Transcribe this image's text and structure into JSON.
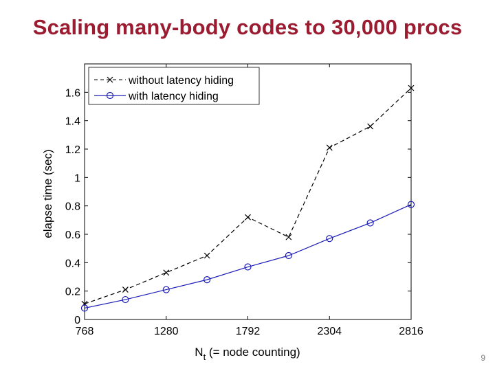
{
  "slide": {
    "title": "Scaling many-body codes to 30,000 procs",
    "page_number": "9"
  },
  "colors": {
    "title": "#9b1b30",
    "series_with": "#1c1cb8",
    "series_without": "#000000"
  },
  "chart_data": {
    "type": "line",
    "title": "",
    "xlabel_main": "N",
    "xlabel_sub": "t",
    "xlabel_rest": " (= node counting)",
    "ylabel": "elapse time (sec)",
    "xlim": [
      768,
      2816
    ],
    "ylim": [
      0,
      1.8
    ],
    "x_ticks": [
      768,
      1280,
      1792,
      2304,
      2816
    ],
    "x_tick_labels": [
      "768",
      "1280",
      "1792",
      "2304",
      "2816"
    ],
    "y_ticks": [
      0,
      0.2,
      0.4,
      0.6,
      0.8,
      1.0,
      1.2,
      1.4,
      1.6
    ],
    "y_tick_labels": [
      "0",
      "0.2",
      "0.4",
      "0.6",
      "0.8",
      "1",
      "1.2",
      "1.4",
      "1.6"
    ],
    "grid": false,
    "legend_position": "top-left",
    "x": [
      768,
      1024,
      1280,
      1536,
      1792,
      2048,
      2304,
      2560,
      2816
    ],
    "series": [
      {
        "name": "without latency hiding",
        "marker": "x",
        "line_style": "dashed",
        "values": [
          0.11,
          0.21,
          0.33,
          0.45,
          0.72,
          0.58,
          1.21,
          1.36,
          1.63
        ]
      },
      {
        "name": "with latency hiding",
        "marker": "o",
        "line_style": "solid",
        "values": [
          0.08,
          0.14,
          0.21,
          0.28,
          0.37,
          0.45,
          0.57,
          0.68,
          0.81
        ]
      }
    ]
  }
}
